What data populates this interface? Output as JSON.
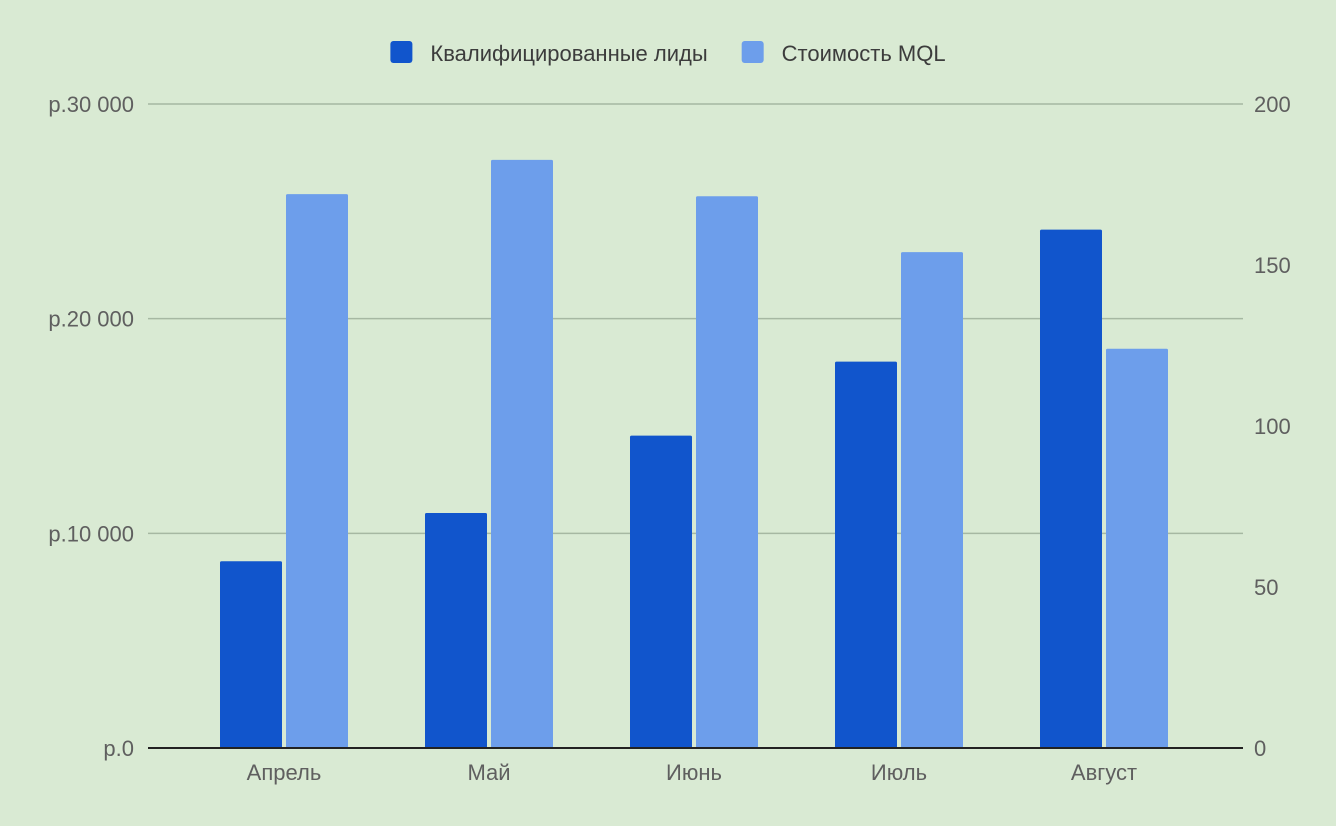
{
  "chart_data": {
    "type": "bar",
    "title": "",
    "categories": [
      "Апрель",
      "Май",
      "Июнь",
      "Июль",
      "Август"
    ],
    "series": [
      {
        "name": "Квалифицированные лиды",
        "axis": "right",
        "color": "#1155cc",
        "values": [
          58,
          73,
          97,
          120,
          161
        ]
      },
      {
        "name": "Стоимость MQL",
        "axis": "left",
        "color": "#6d9eeb",
        "values": [
          25800,
          27400,
          25700,
          23100,
          18600
        ]
      }
    ],
    "y_left": {
      "ylim": [
        0,
        30000
      ],
      "ticks": [
        0,
        10000,
        20000,
        30000
      ],
      "tick_labels": [
        "р.0",
        "р.10 000",
        "р.20 000",
        "р.30 000"
      ]
    },
    "y_right": {
      "ylim": [
        0,
        200
      ],
      "ticks": [
        0,
        50,
        100,
        150,
        200
      ],
      "tick_labels": [
        "0",
        "50",
        "100",
        "150",
        "200"
      ]
    },
    "grid": true,
    "legend_position": "top-center"
  },
  "colors": {
    "background": "#d9ead3",
    "gridline": "#a6b8a2",
    "axis": "#222222"
  }
}
